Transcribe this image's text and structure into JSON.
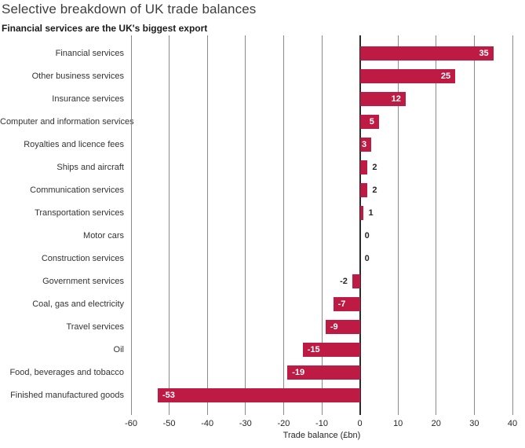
{
  "chart_data": {
    "type": "bar",
    "orientation": "horizontal",
    "title": "Selective breakdown of UK trade balances",
    "subtitle": "Financial services are the UK's biggest export",
    "xlabel": "Trade balance (£bn)",
    "categories": [
      "Financial services",
      "Other business services",
      "Insurance services",
      "Computer and information services",
      "Royalties and licence fees",
      "Ships and aircraft",
      "Communication services",
      "Transportation services",
      "Motor cars",
      "Construction services",
      "Government services",
      "Coal, gas and electricity",
      "Travel services",
      "Oil",
      "Food, beverages and tobacco",
      "Finished manufactured goods"
    ],
    "values": [
      35,
      25,
      12,
      5,
      3,
      2,
      2,
      1,
      0,
      0,
      -2,
      -7,
      -9,
      -15,
      -19,
      -53
    ],
    "xlim": [
      -60,
      40
    ],
    "xticks": [
      -60,
      -50,
      -40,
      -30,
      -20,
      -10,
      0,
      10,
      20,
      30,
      40
    ],
    "grid": true,
    "legend": false,
    "colors": {
      "bar": "#BD1B44",
      "gridline": "#8a8a8a",
      "zero_line": "#2b2b2b",
      "value_inside": "#ffffff",
      "value_outside": "#262626",
      "title": "#3d3d3d",
      "text": "#333333"
    },
    "value_label_inside_threshold": 3
  }
}
